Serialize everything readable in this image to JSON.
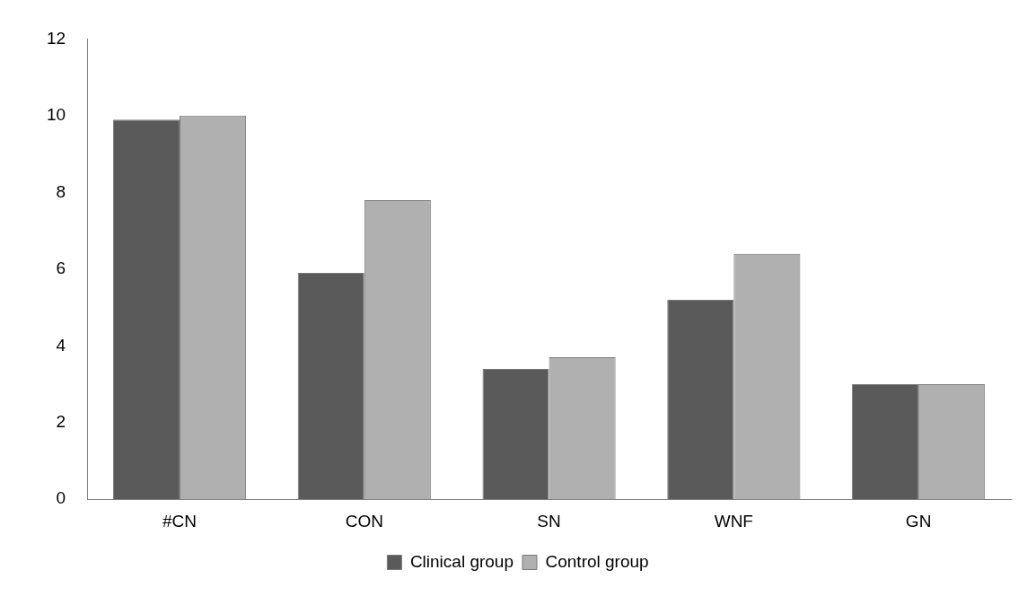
{
  "chart_data": {
    "type": "bar",
    "categories": [
      "#CN",
      "CON",
      "SN",
      "WNF",
      "GN"
    ],
    "series": [
      {
        "name": "Clinical group",
        "color": "#5a5a5a",
        "values": [
          9.9,
          5.9,
          3.4,
          5.2,
          3.0
        ]
      },
      {
        "name": "Control group",
        "color": "#b0b0b0",
        "values": [
          10.0,
          7.8,
          3.7,
          6.4,
          3.0
        ]
      }
    ],
    "ylim": [
      0,
      12
    ],
    "yticks": [
      0,
      2,
      4,
      6,
      8,
      10,
      12
    ],
    "grid": false,
    "legend": "bottom"
  }
}
